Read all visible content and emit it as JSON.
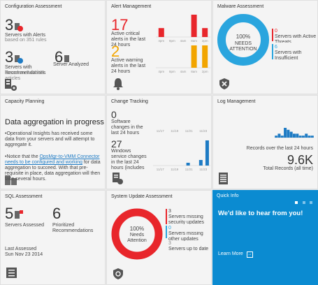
{
  "tiles": {
    "config": {
      "title": "Configuration Assessment",
      "servers_alerts_count": "3",
      "servers_alerts_label": "Servers with Alerts",
      "servers_alerts_sub": "based on 351 rules",
      "servers_recs_count": "3",
      "servers_recs_label": "Servers with Recommendations",
      "servers_recs_sub": "based on 3.4K KB articles",
      "servers_analyzed_count": "6",
      "servers_analyzed_label": "Server Analyzed"
    },
    "alerts": {
      "title": "Alert Management",
      "critical_count": "17",
      "critical_label": "Active critical alerts in the last 24 hours",
      "warning_count": "2",
      "warning_label": "Active warning alerts in the last 24 hours",
      "axis_labels": [
        "4pm",
        "8pm",
        "4am",
        "8am",
        "2pm"
      ],
      "critical_bars": [
        2,
        0,
        0,
        5,
        2
      ],
      "warning_bars": [
        0,
        0,
        0,
        3,
        3
      ],
      "critical_color": "#e8262b",
      "warning_color": "#f2a500"
    },
    "malware": {
      "title": "Malware Assessment",
      "donut_pct": "100%",
      "donut_label": "NEEDS ATTENTION",
      "active_count": "0",
      "active_label": "Servers with Active Threats",
      "insufficient_count": "6",
      "insufficient_label": "Servers with Insufficient Protection",
      "color": "#2aa5de"
    },
    "capacity": {
      "title": "Capacity Planning",
      "heading": "Data aggregation in progress",
      "bullet1": "Operational Insights has received some data from your servers and will attempt to aggregate it.",
      "bullet2_pre": "Notice that the ",
      "bullet2_link": "OpsMgr-to-VMM Connector needs to be configured and working",
      "bullet2_post": " for data aggregation to succeed. With that pre-requisite in place, data aggregation will then take several hours."
    },
    "change": {
      "title": "Change Tracking",
      "software_count": "0",
      "software_label": "Software changes in the last 24 hours",
      "windows_count": "27",
      "windows_label": "Windows service changes in the last 24 hours (includes status)",
      "axis_labels": [
        "11/17",
        "11/19",
        "11/21",
        "11/23"
      ],
      "bars": [
        0,
        0,
        0,
        0,
        0,
        1,
        0,
        2,
        9
      ]
    },
    "log": {
      "title": "Log Management",
      "records_label": "Records over the last 24 hours",
      "total_value": "9.6K",
      "total_label": "Total Records (all time)",
      "bars": [
        1,
        2,
        1,
        5,
        4,
        3,
        2,
        2,
        1,
        1,
        2,
        1,
        1
      ]
    },
    "sql": {
      "title": "SQL Assessment",
      "assessed_count": "5",
      "assessed_label": "Servers Assessed",
      "recs_count": "6",
      "recs_label": "Prioritized Recommendations",
      "last_label": "Last Assessed",
      "last_value": "Sun Nov 23 2014"
    },
    "update": {
      "title": "System Update Assessment",
      "donut_pct": "100%",
      "donut_label": "Needs Attention",
      "missing_sec_count": "3",
      "missing_sec_label": "Servers missing security updates",
      "missing_other_count": "0",
      "missing_other_label": "Servers missing other updates",
      "uptodate_count": "3",
      "uptodate_label": "Servers up to date",
      "color": "#e8262b"
    },
    "quickinfo": {
      "title": "Quick Info",
      "heading": "We'd like to hear from you!",
      "learn_more": "Learn More"
    }
  }
}
